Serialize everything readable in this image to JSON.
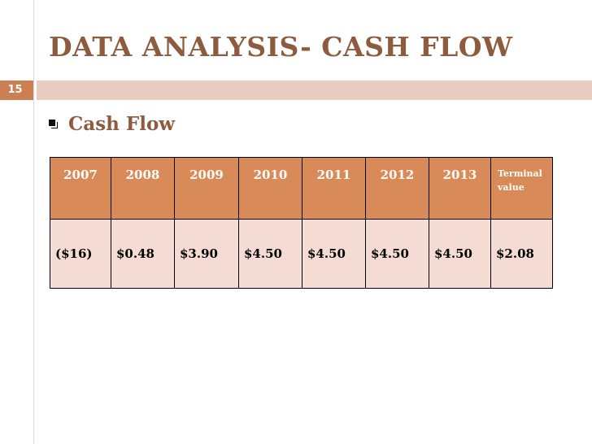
{
  "slide": {
    "title": "DATA ANALYSIS- CASH FLOW",
    "page_number": "15",
    "bullet": "Cash Flow"
  },
  "table": {
    "headers": [
      "2007",
      "2008",
      "2009",
      "2010",
      "2011",
      "2012",
      "2013"
    ],
    "terminal_header": [
      "Terminal",
      "value"
    ],
    "values": [
      "($16)",
      "$0.48",
      "$3.90",
      "$4.50",
      "$4.50",
      "$4.50",
      "$4.50",
      "$2.08"
    ]
  },
  "colors": {
    "title": "#8e5b3e",
    "header_fill": "#d98a59",
    "row_fill": "#f4dcd4",
    "accent_bar": "#cb7f52",
    "light_bar": "#e8ccc0"
  },
  "icons": {
    "bullet": "square-bullet-icon"
  }
}
